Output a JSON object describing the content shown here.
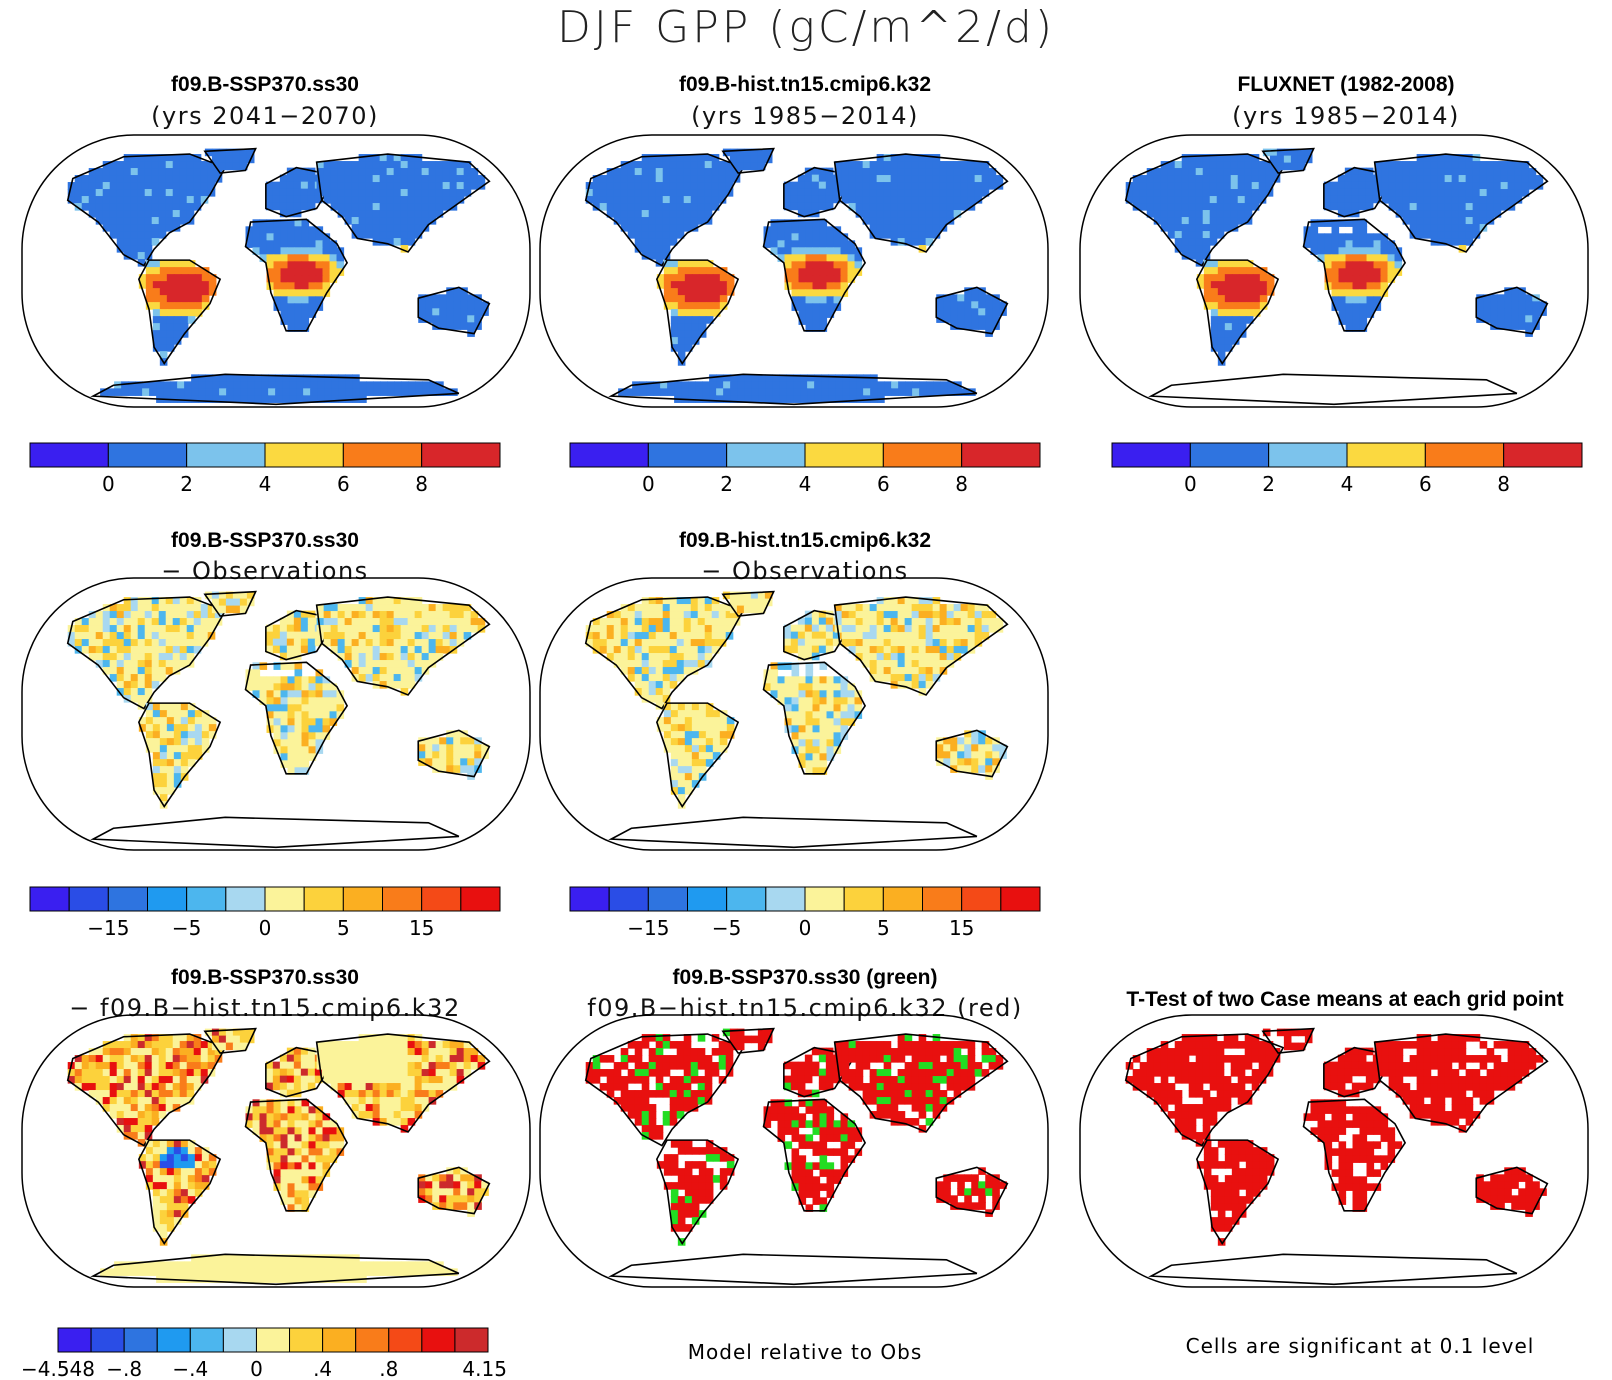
{
  "figure": {
    "title": "DJF GPP (gC/m^2/d)",
    "colors": {
      "abs": [
        "#3a1ff0",
        "#2f74e0",
        "#7cc3ec",
        "#fbd940",
        "#f97c1a",
        "#d8262a"
      ],
      "diff": [
        "#3a1ff0",
        "#2a4de6",
        "#2e74e0",
        "#1f9af0",
        "#4cb6ee",
        "#a8d8f0",
        "#fbf39a",
        "#fcd23c",
        "#fbaf21",
        "#f97c1a",
        "#f44a17",
        "#e8100f",
        "#cc2a2c"
      ],
      "sig_red": "#e8100f",
      "sig_green": "#22dd22",
      "land_outline": "#000000"
    },
    "panels": [
      {
        "id": "p1",
        "title1": "f09.B-SSP370.ss30",
        "title2": "(yrs 2041−2070)",
        "palette": "abs",
        "colorbar": "abs"
      },
      {
        "id": "p2",
        "title1": "f09.B-hist.tn15.cmip6.k32",
        "title2": "(yrs 1985−2014)",
        "palette": "abs",
        "colorbar": "abs"
      },
      {
        "id": "p3",
        "title1": "FLUXNET (1982-2008)",
        "title2": "(yrs 1985−2014)",
        "palette": "abs",
        "colorbar": "abs"
      },
      {
        "id": "p4",
        "title1": "f09.B-SSP370.ss30",
        "title2": "− Observations",
        "palette": "diff",
        "colorbar": "diff"
      },
      {
        "id": "p5",
        "title1": "f09.B-hist.tn15.cmip6.k32",
        "title2": "− Observations",
        "palette": "diff",
        "colorbar": "diff"
      },
      {
        "id": "p7",
        "title1": "f09.B-SSP370.ss30",
        "title2": "− f09.B−hist.tn15.cmip6.k32",
        "palette": "diff",
        "colorbar": "diff2"
      },
      {
        "id": "p8",
        "title1": "f09.B-SSP370.ss30 (green)",
        "title2": "f09.B−hist.tn15.cmip6.k32 (red)",
        "palette": "sig2",
        "colorbar": "none"
      },
      {
        "id": "p9",
        "title1": "T-Test of two Case means at each grid point",
        "title2": "",
        "palette": "sig",
        "colorbar": "none"
      }
    ],
    "notes": {
      "model_relative": "Model relative to Obs",
      "significance": "Cells are significant at 0.1 level"
    }
  },
  "chart_data": [
    {
      "type": "heatmap",
      "title": "f09.B-SSP370.ss30 (yrs 2041−2070)",
      "colorbar": {
        "levels": [
          "0",
          "2",
          "4",
          "6",
          "8"
        ],
        "bins": 6
      }
    },
    {
      "type": "heatmap",
      "title": "f09.B-hist.tn15.cmip6.k32 (yrs 1985−2014)",
      "colorbar": {
        "levels": [
          "0",
          "2",
          "4",
          "6",
          "8"
        ],
        "bins": 6
      }
    },
    {
      "type": "heatmap",
      "title": "FLUXNET (1982-2008) (yrs 1985−2014)",
      "colorbar": {
        "levels": [
          "0",
          "2",
          "4",
          "6",
          "8"
        ],
        "bins": 6
      }
    },
    {
      "type": "heatmap",
      "title": "f09.B-SSP370.ss30 − Observations",
      "colorbar": {
        "labels": [
          "−15",
          "−5",
          "0",
          "5",
          "15"
        ],
        "bins": 12
      }
    },
    {
      "type": "heatmap",
      "title": "f09.B-hist.tn15.cmip6.k32 − Observations",
      "colorbar": {
        "labels": [
          "−15",
          "−5",
          "0",
          "5",
          "15"
        ],
        "bins": 12
      }
    },
    {
      "type": "heatmap",
      "title": "f09.B-SSP370.ss30 − f09.B−hist.tn15.cmip6.k32",
      "colorbar": {
        "labels": [
          "−4.548",
          "−.8",
          "−.4",
          "0",
          ".4",
          ".8",
          "4.15"
        ],
        "bins": 11
      }
    },
    {
      "type": "heatmap",
      "title": "f09.B-SSP370.ss30 (green) f09.B−hist.tn15.cmip6.k32 (red)"
    },
    {
      "type": "heatmap",
      "title": "T-Test of two Case means at each grid point"
    }
  ]
}
